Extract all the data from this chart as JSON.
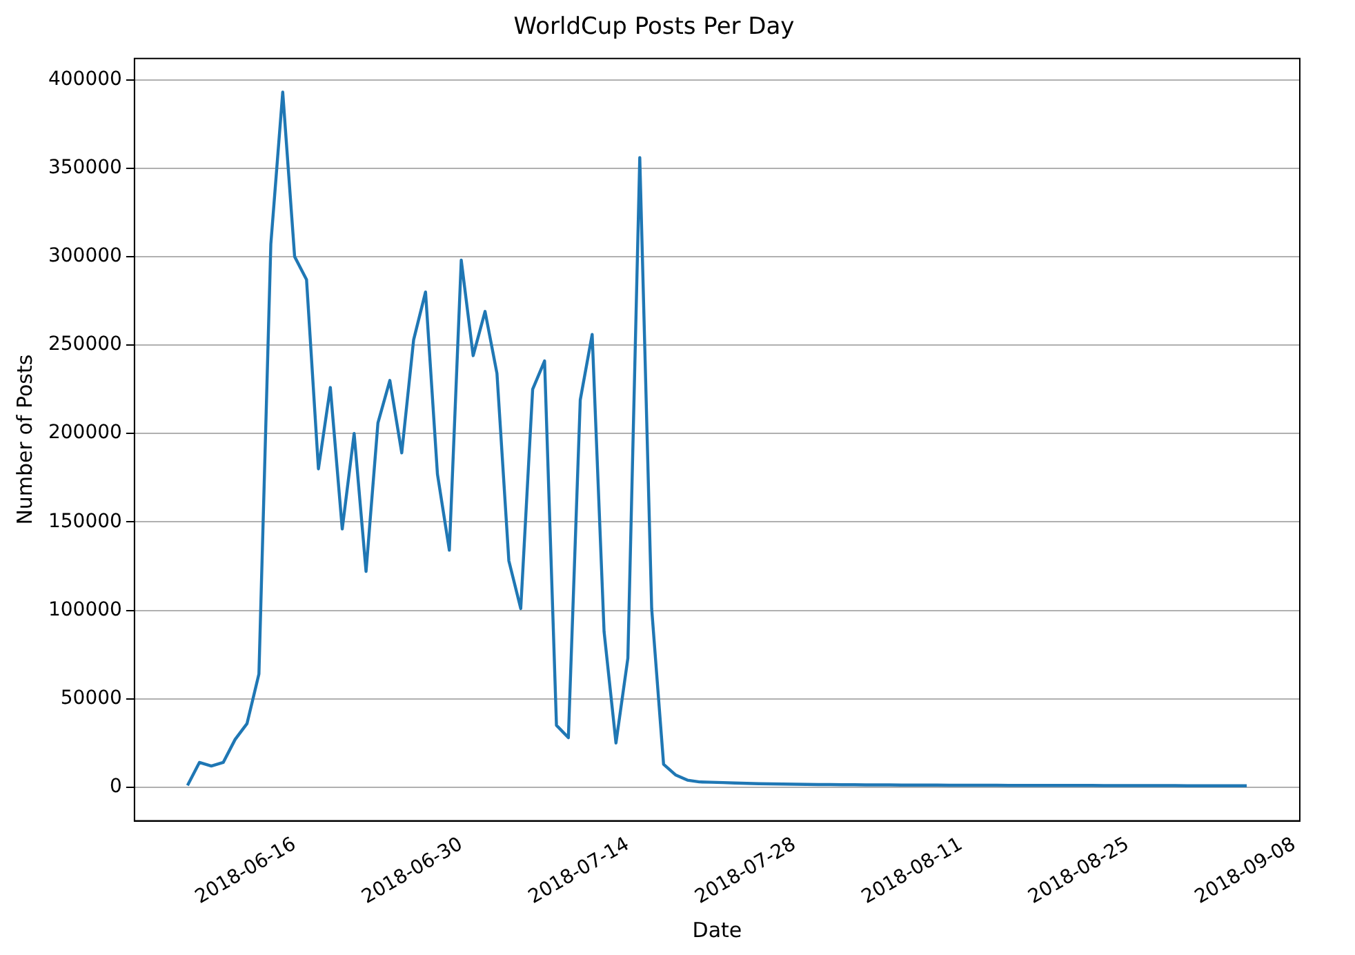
{
  "chart_data": {
    "type": "line",
    "title": "WorldCup Posts Per Day",
    "xlabel": "Date",
    "ylabel": "Number of Posts",
    "x": [
      "2018-06-07",
      "2018-06-08",
      "2018-06-09",
      "2018-06-10",
      "2018-06-11",
      "2018-06-12",
      "2018-06-13",
      "2018-06-14",
      "2018-06-15",
      "2018-06-16",
      "2018-06-17",
      "2018-06-18",
      "2018-06-19",
      "2018-06-20",
      "2018-06-21",
      "2018-06-22",
      "2018-06-23",
      "2018-06-24",
      "2018-06-25",
      "2018-06-26",
      "2018-06-27",
      "2018-06-28",
      "2018-06-29",
      "2018-06-30",
      "2018-07-01",
      "2018-07-02",
      "2018-07-03",
      "2018-07-04",
      "2018-07-05",
      "2018-07-06",
      "2018-07-07",
      "2018-07-08",
      "2018-07-09",
      "2018-07-10",
      "2018-07-11",
      "2018-07-12",
      "2018-07-13",
      "2018-07-14",
      "2018-07-15",
      "2018-07-16",
      "2018-07-17",
      "2018-07-18",
      "2018-07-19",
      "2018-07-20",
      "2018-07-21",
      "2018-07-22",
      "2018-07-23",
      "2018-07-24",
      "2018-07-25",
      "2018-07-26",
      "2018-07-27",
      "2018-07-28",
      "2018-07-29",
      "2018-07-30",
      "2018-07-31",
      "2018-08-01",
      "2018-08-02",
      "2018-08-03",
      "2018-08-04",
      "2018-08-05",
      "2018-08-06",
      "2018-08-07",
      "2018-08-08",
      "2018-08-09",
      "2018-08-10",
      "2018-08-11",
      "2018-08-12",
      "2018-08-13",
      "2018-08-14",
      "2018-08-15",
      "2018-08-16",
      "2018-08-17",
      "2018-08-18",
      "2018-08-19",
      "2018-08-20",
      "2018-08-21",
      "2018-08-22",
      "2018-08-23",
      "2018-08-24",
      "2018-08-25",
      "2018-08-26",
      "2018-08-27",
      "2018-08-28",
      "2018-08-29",
      "2018-08-30",
      "2018-08-31",
      "2018-09-01",
      "2018-09-02",
      "2018-09-03",
      "2018-09-04"
    ],
    "series": [
      {
        "color": "#1f77b4",
        "values": [
          1000,
          14000,
          12000,
          14000,
          27000,
          36000,
          64000,
          307000,
          393000,
          300000,
          287000,
          180000,
          226000,
          146000,
          200000,
          122000,
          206000,
          230000,
          189000,
          253000,
          280000,
          177000,
          134000,
          298000,
          244000,
          269000,
          234000,
          128000,
          101000,
          225000,
          241000,
          35000,
          28000,
          219000,
          256000,
          88000,
          25000,
          73000,
          356000,
          101000,
          13000,
          7000,
          4000,
          3000,
          2800,
          2600,
          2400,
          2200,
          2000,
          1900,
          1800,
          1700,
          1600,
          1500,
          1500,
          1400,
          1400,
          1300,
          1300,
          1300,
          1200,
          1200,
          1200,
          1200,
          1100,
          1100,
          1100,
          1100,
          1100,
          1000,
          1000,
          1000,
          1000,
          1000,
          1000,
          1000,
          1000,
          900,
          900,
          900,
          900,
          900,
          900,
          900,
          800,
          800,
          800,
          800,
          800,
          800
        ]
      }
    ],
    "xlim": [
      "2018-06-02T13:00",
      "2018-09-08T11:00"
    ],
    "xticks": [
      "2018-06-16",
      "2018-06-30",
      "2018-07-14",
      "2018-07-28",
      "2018-08-11",
      "2018-08-25",
      "2018-09-08"
    ],
    "ylim": [
      -19000,
      412000
    ],
    "yticks": [
      0,
      50000,
      100000,
      150000,
      200000,
      250000,
      300000,
      350000,
      400000
    ],
    "grid": "y",
    "legend": false,
    "marker": "none",
    "line_style": "solid"
  }
}
